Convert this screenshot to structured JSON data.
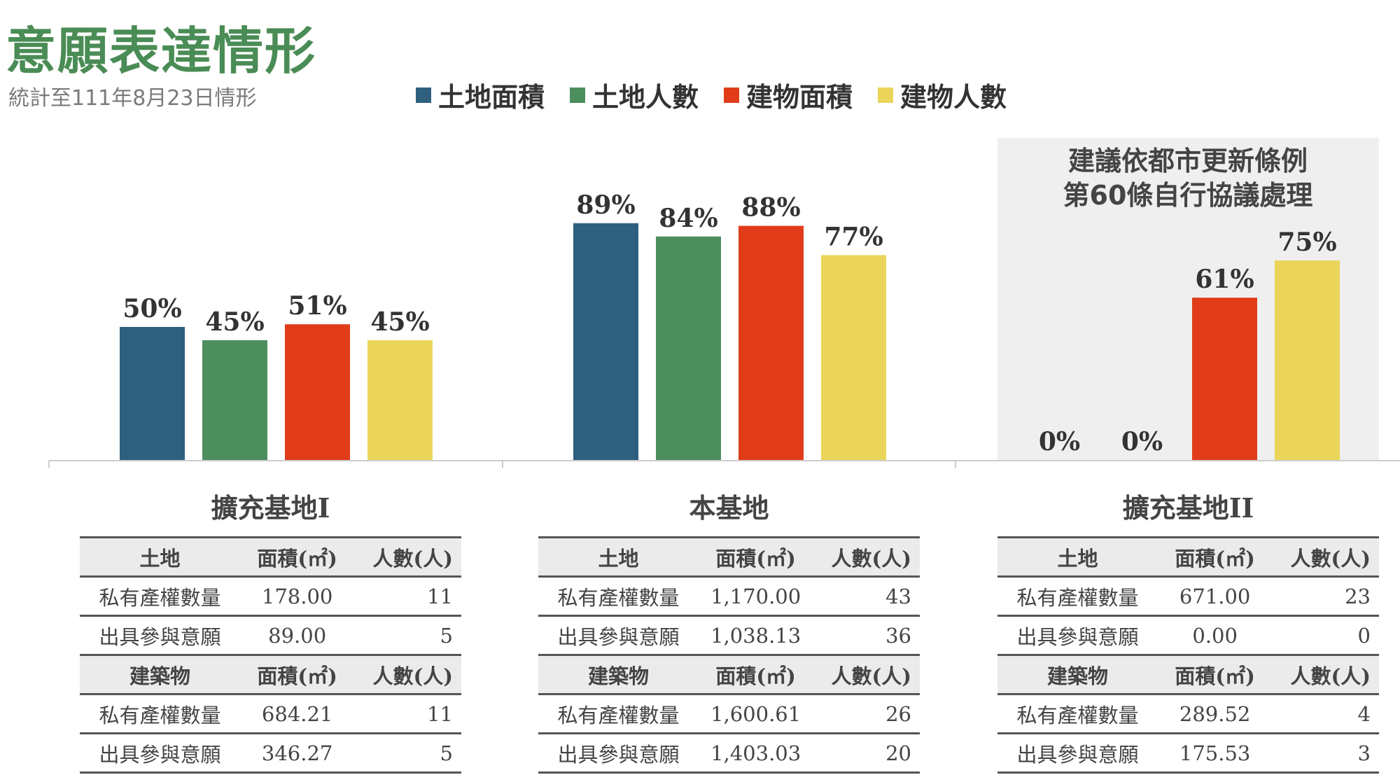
{
  "header": {
    "title": "意願表達情形",
    "subtitle": "統計至111年8月23日情形"
  },
  "legend": [
    {
      "label": "土地面積",
      "color": "#2f5f7f"
    },
    {
      "label": "土地人數",
      "color": "#4c8e5e"
    },
    {
      "label": "建物面積",
      "color": "#e03c1a"
    },
    {
      "label": "建物人數",
      "color": "#ead55a"
    }
  ],
  "note": {
    "line1": "建議依都市更新條例",
    "line2": "第60條自行協議處理"
  },
  "chart_data": {
    "type": "bar",
    "categories": [
      "擴充基地I",
      "本基地",
      "擴充基地II"
    ],
    "series": [
      {
        "name": "土地面積",
        "values": [
          50,
          89,
          0
        ],
        "labels": [
          "50%",
          "89%",
          "0%"
        ]
      },
      {
        "name": "土地人數",
        "values": [
          45,
          84,
          0
        ],
        "labels": [
          "45%",
          "84%",
          "0%"
        ]
      },
      {
        "name": "建物面積",
        "values": [
          51,
          88,
          61
        ],
        "labels": [
          "51%",
          "88%",
          "61%"
        ]
      },
      {
        "name": "建物人數",
        "values": [
          45,
          77,
          75
        ],
        "labels": [
          "45%",
          "77%",
          "75%"
        ]
      }
    ],
    "ylim": [
      0,
      100
    ],
    "grid": false,
    "legend_position": "top"
  },
  "tables": [
    {
      "title": "擴充基地I",
      "land_header": {
        "name": "土地",
        "area": "面積(㎡)",
        "count": "人數(人)"
      },
      "land_rows": [
        {
          "name": "私有產權數量",
          "area": "178.00",
          "count": "11"
        },
        {
          "name": "出具參與意願",
          "area": "89.00",
          "count": "5"
        }
      ],
      "building_header": {
        "name": "建築物",
        "area": "面積(㎡)",
        "count": "人數(人)"
      },
      "building_rows": [
        {
          "name": "私有產權數量",
          "area": "684.21",
          "count": "11"
        },
        {
          "name": "出具參與意願",
          "area": "346.27",
          "count": "5"
        }
      ]
    },
    {
      "title": "本基地",
      "land_header": {
        "name": "土地",
        "area": "面積(㎡)",
        "count": "人數(人)"
      },
      "land_rows": [
        {
          "name": "私有產權數量",
          "area": "1,170.00",
          "count": "43"
        },
        {
          "name": "出具參與意願",
          "area": "1,038.13",
          "count": "36"
        }
      ],
      "building_header": {
        "name": "建築物",
        "area": "面積(㎡)",
        "count": "人數(人)"
      },
      "building_rows": [
        {
          "name": "私有產權數量",
          "area": "1,600.61",
          "count": "26"
        },
        {
          "name": "出具參與意願",
          "area": "1,403.03",
          "count": "20"
        }
      ]
    },
    {
      "title": "擴充基地II",
      "land_header": {
        "name": "土地",
        "area": "面積(㎡)",
        "count": "人數(人)"
      },
      "land_rows": [
        {
          "name": "私有產權數量",
          "area": "671.00",
          "count": "23"
        },
        {
          "name": "出具參與意願",
          "area": "0.00",
          "count": "0"
        }
      ],
      "building_header": {
        "name": "建築物",
        "area": "面積(㎡)",
        "count": "人數(人)"
      },
      "building_rows": [
        {
          "name": "私有產權數量",
          "area": "289.52",
          "count": "4"
        },
        {
          "name": "出具參與意願",
          "area": "175.53",
          "count": "3"
        }
      ]
    }
  ]
}
